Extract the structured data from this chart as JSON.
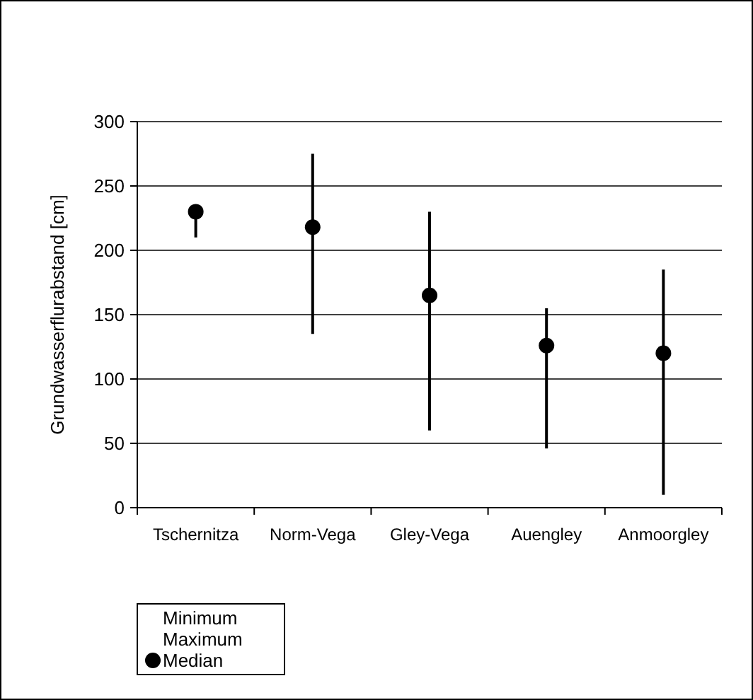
{
  "chart_data": {
    "type": "scatter",
    "ylabel": "Grundwasserflurabstand   [cm]",
    "categories": [
      "Tschernitza",
      "Norm-Vega",
      "Gley-Vega",
      "Auengley",
      "Anmoorgley"
    ],
    "series": [
      {
        "name": "Median",
        "color": "#000000",
        "marker": "circle",
        "values": [
          230,
          218,
          165,
          126,
          120
        ],
        "errors": [
          [
            210,
            230
          ],
          [
            135,
            275
          ],
          [
            60,
            230
          ],
          [
            46,
            155
          ],
          [
            10,
            185
          ]
        ]
      }
    ],
    "annotations": [
      "Minimum",
      "Maximum"
    ],
    "ylim": [
      0,
      300
    ],
    "yticks": [
      0,
      50,
      100,
      150,
      200,
      250,
      300
    ],
    "grid": "y",
    "legend": "bottom left"
  }
}
